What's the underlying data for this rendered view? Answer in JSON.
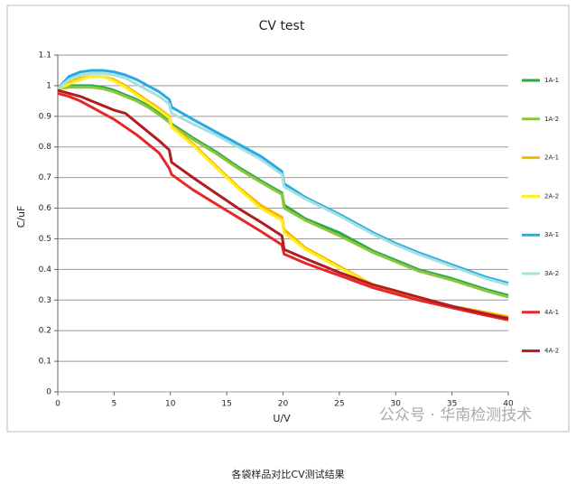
{
  "chart_data": {
    "type": "line",
    "title": "CV test",
    "x_label": "U/V",
    "y_label": "C/uF",
    "x": [
      0,
      1,
      2,
      3,
      4,
      5,
      6,
      7,
      8,
      9,
      9.9,
      10.1,
      12,
      14,
      16,
      18,
      19.9,
      20.1,
      22,
      25,
      28,
      30,
      32,
      35,
      38,
      40
    ],
    "series": [
      {
        "name": "1A-1",
        "color": "#2aa84a",
        "values": [
          0.99,
          1.0,
          1.0,
          1.0,
          0.995,
          0.985,
          0.97,
          0.955,
          0.935,
          0.91,
          0.885,
          0.875,
          0.83,
          0.785,
          0.735,
          0.69,
          0.65,
          0.61,
          0.565,
          0.52,
          0.46,
          0.43,
          0.4,
          0.37,
          0.335,
          0.315
        ]
      },
      {
        "name": "1A-2",
        "color": "#8cc63f",
        "values": [
          0.99,
          0.995,
          0.995,
          0.995,
          0.99,
          0.98,
          0.965,
          0.95,
          0.93,
          0.905,
          0.88,
          0.87,
          0.825,
          0.78,
          0.73,
          0.685,
          0.645,
          0.6,
          0.56,
          0.51,
          0.455,
          0.425,
          0.395,
          0.365,
          0.33,
          0.31
        ]
      },
      {
        "name": "2A-1",
        "color": "#f5b800",
        "values": [
          0.99,
          1.01,
          1.025,
          1.03,
          1.03,
          1.02,
          1.0,
          0.975,
          0.95,
          0.925,
          0.9,
          0.87,
          0.81,
          0.74,
          0.67,
          0.61,
          0.57,
          0.53,
          0.47,
          0.41,
          0.35,
          0.33,
          0.305,
          0.28,
          0.26,
          0.245
        ]
      },
      {
        "name": "2A-2",
        "color": "#ffee22",
        "values": [
          0.99,
          1.005,
          1.02,
          1.03,
          1.03,
          1.015,
          0.995,
          0.97,
          0.945,
          0.92,
          0.895,
          0.865,
          0.805,
          0.735,
          0.665,
          0.6,
          0.56,
          0.52,
          0.465,
          0.405,
          0.35,
          0.325,
          0.305,
          0.275,
          0.255,
          0.24
        ]
      },
      {
        "name": "3A-1",
        "color": "#27aae1",
        "values": [
          0.99,
          1.03,
          1.045,
          1.05,
          1.05,
          1.045,
          1.035,
          1.02,
          1.0,
          0.98,
          0.955,
          0.93,
          0.89,
          0.85,
          0.81,
          0.77,
          0.72,
          0.68,
          0.635,
          0.58,
          0.52,
          0.485,
          0.455,
          0.415,
          0.375,
          0.355
        ]
      },
      {
        "name": "3A-2",
        "color": "#a8e0e0",
        "values": [
          0.99,
          1.02,
          1.035,
          1.04,
          1.04,
          1.035,
          1.025,
          1.005,
          0.985,
          0.965,
          0.94,
          0.91,
          0.875,
          0.84,
          0.8,
          0.76,
          0.71,
          0.67,
          0.63,
          0.575,
          0.515,
          0.48,
          0.45,
          0.41,
          0.37,
          0.35
        ]
      },
      {
        "name": "4A-1",
        "color": "#e8262a",
        "values": [
          0.975,
          0.965,
          0.95,
          0.93,
          0.91,
          0.89,
          0.865,
          0.84,
          0.81,
          0.78,
          0.73,
          0.71,
          0.66,
          0.615,
          0.57,
          0.525,
          0.48,
          0.45,
          0.42,
          0.38,
          0.34,
          0.32,
          0.3,
          0.275,
          0.25,
          0.235
        ]
      },
      {
        "name": "4A-2",
        "color": "#b01c20",
        "values": [
          0.985,
          0.975,
          0.965,
          0.95,
          0.935,
          0.92,
          0.91,
          0.88,
          0.85,
          0.82,
          0.79,
          0.75,
          0.7,
          0.65,
          0.6,
          0.555,
          0.51,
          0.465,
          0.435,
          0.39,
          0.35,
          0.33,
          0.31,
          0.28,
          0.255,
          0.24
        ]
      }
    ],
    "xlim": [
      0,
      40
    ],
    "xticks": [
      0,
      5,
      10,
      15,
      20,
      25,
      30,
      35,
      40
    ],
    "ylim": [
      0,
      1.1
    ],
    "yticks": [
      0,
      0.1,
      0.2,
      0.3,
      0.4,
      0.5,
      0.6,
      0.7,
      0.8,
      0.9,
      1,
      1.1
    ],
    "grid": true,
    "legend": "right"
  },
  "watermark": "公众号 · 华南检测技术",
  "caption": "各袋样品对比CV测试结果"
}
